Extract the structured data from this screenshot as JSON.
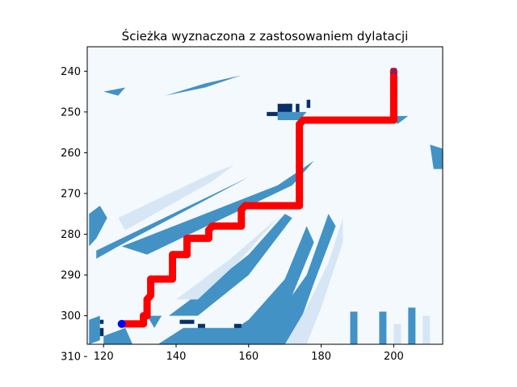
{
  "chart_data": {
    "type": "heatmap",
    "title": "Ścieżka wyznaczona z zastosowaniem dylatacji",
    "xlabel": "",
    "ylabel": "",
    "xlim": [
      115.5,
      213.5
    ],
    "ylim": [
      307,
      234
    ],
    "xticks": [
      120,
      140,
      160,
      180,
      200
    ],
    "yticks": [
      240,
      250,
      260,
      270,
      280,
      290,
      300,
      310
    ],
    "colormap": "Blues",
    "colors": {
      "background": "#f4f9fe",
      "light": "#d6e6f4",
      "mid": "#4292c6",
      "dark": "#08306b",
      "path": "#ff0000",
      "start_marker": "#0000ff",
      "end_marker": "#3a2fa6"
    },
    "regions": [
      {
        "shade": "mid",
        "points": [
          [
            116,
            275
          ],
          [
            119,
            273
          ],
          [
            121,
            276
          ],
          [
            118,
            281
          ],
          [
            116,
            283
          ]
        ]
      },
      {
        "shade": "mid",
        "points": [
          [
            118,
            284
          ],
          [
            160,
            266
          ],
          [
            164,
            264
          ],
          [
            168,
            262
          ],
          [
            160,
            266
          ],
          [
            124,
            283
          ],
          [
            118,
            286
          ]
        ]
      },
      {
        "shade": "light",
        "points": [
          [
            124,
            276
          ],
          [
            150,
            265
          ],
          [
            156,
            263
          ],
          [
            150,
            267
          ],
          [
            126,
            279
          ]
        ]
      },
      {
        "shade": "mid",
        "points": [
          [
            125,
            283
          ],
          [
            168,
            268
          ],
          [
            178,
            262
          ],
          [
            172,
            268
          ],
          [
            132,
            285
          ]
        ]
      },
      {
        "shade": "mid",
        "points": [
          [
            138,
            300
          ],
          [
            150,
            292
          ],
          [
            160,
            285
          ],
          [
            170,
            275
          ],
          [
            172,
            276
          ],
          [
            160,
            290
          ],
          [
            146,
            300
          ]
        ]
      },
      {
        "shade": "light",
        "points": [
          [
            140,
            296
          ],
          [
            155,
            286
          ],
          [
            168,
            276
          ],
          [
            158,
            286
          ],
          [
            146,
            296
          ]
        ]
      },
      {
        "shade": "mid",
        "points": [
          [
            135,
            307
          ],
          [
            142,
            303
          ],
          [
            160,
            303
          ],
          [
            155,
            307
          ]
        ]
      },
      {
        "shade": "mid",
        "points": [
          [
            150,
            307
          ],
          [
            160,
            301
          ],
          [
            170,
            291
          ],
          [
            176,
            278
          ],
          [
            178,
            282
          ],
          [
            172,
            295
          ],
          [
            165,
            307
          ]
        ]
      },
      {
        "shade": "mid",
        "points": [
          [
            160,
            307
          ],
          [
            168,
            300
          ],
          [
            176,
            290
          ],
          [
            182,
            275
          ],
          [
            184,
            278
          ],
          [
            178,
            292
          ],
          [
            172,
            307
          ]
        ]
      },
      {
        "shade": "light",
        "points": [
          [
            170,
            307
          ],
          [
            176,
            298
          ],
          [
            182,
            287
          ],
          [
            186,
            276
          ],
          [
            186,
            282
          ],
          [
            180,
            298
          ],
          [
            176,
            307
          ]
        ]
      },
      {
        "shade": "mid",
        "points": [
          [
            116,
            301
          ],
          [
            119,
            300
          ],
          [
            119,
            306
          ],
          [
            116,
            307
          ]
        ]
      },
      {
        "shade": "mid",
        "points": [
          [
            120,
            305
          ],
          [
            126,
            303
          ],
          [
            128,
            307
          ],
          [
            120,
            307
          ]
        ]
      },
      {
        "shade": "mid",
        "points": [
          [
            132,
            300
          ],
          [
            136,
            300
          ],
          [
            134,
            303
          ]
        ]
      },
      {
        "shade": "mid",
        "points": [
          [
            137,
            246
          ],
          [
            148,
            243
          ],
          [
            158,
            241
          ],
          [
            148,
            244
          ]
        ]
      },
      {
        "shade": "mid",
        "points": [
          [
            120,
            245
          ],
          [
            126,
            244
          ],
          [
            124,
            246
          ]
        ]
      },
      {
        "shade": "mid",
        "points": [
          [
            168,
            250
          ],
          [
            176,
            250
          ],
          [
            174,
            252
          ],
          [
            168,
            252
          ]
        ]
      },
      {
        "shade": "dark",
        "points": [
          [
            168,
            248
          ],
          [
            172,
            248
          ],
          [
            172,
            250
          ],
          [
            168,
            250
          ]
        ]
      },
      {
        "shade": "mid",
        "points": [
          [
            200,
            251
          ],
          [
            204,
            251
          ],
          [
            201,
            253
          ]
        ]
      },
      {
        "shade": "mid",
        "points": [
          [
            210,
            258
          ],
          [
            213.5,
            259
          ],
          [
            213.5,
            264
          ],
          [
            211,
            264
          ]
        ]
      },
      {
        "shade": "mid",
        "points": [
          [
            188,
            299
          ],
          [
            190,
            299
          ],
          [
            190,
            307
          ],
          [
            188,
            307
          ]
        ]
      },
      {
        "shade": "mid",
        "points": [
          [
            196,
            299
          ],
          [
            198,
            299
          ],
          [
            198,
            307
          ],
          [
            196,
            307
          ]
        ]
      },
      {
        "shade": "mid",
        "points": [
          [
            204,
            298
          ],
          [
            206,
            298
          ],
          [
            206,
            307
          ],
          [
            204,
            307
          ]
        ]
      },
      {
        "shade": "light",
        "points": [
          [
            208,
            300
          ],
          [
            210,
            300
          ],
          [
            210,
            307
          ],
          [
            208,
            307
          ]
        ]
      },
      {
        "shade": "light",
        "points": [
          [
            200,
            302
          ],
          [
            202,
            302
          ],
          [
            202,
            307
          ],
          [
            200,
            307
          ]
        ]
      }
    ],
    "dark_blocks": [
      [
        119,
        303,
        1,
        2
      ],
      [
        119,
        301,
        1,
        1
      ],
      [
        141,
        301,
        4,
        1
      ],
      [
        146,
        302,
        2,
        1
      ],
      [
        156,
        302,
        2,
        1
      ],
      [
        165,
        250,
        3,
        1
      ],
      [
        170,
        248,
        2,
        1
      ],
      [
        176,
        247,
        1,
        2
      ],
      [
        173,
        248,
        1,
        2
      ]
    ],
    "path": [
      [
        125,
        302
      ],
      [
        131,
        302
      ],
      [
        131,
        300
      ],
      [
        132,
        300
      ],
      [
        132,
        298
      ],
      [
        132,
        296
      ],
      [
        133,
        295
      ],
      [
        133,
        293
      ],
      [
        133,
        291
      ],
      [
        135,
        291
      ],
      [
        139,
        291
      ],
      [
        139,
        289
      ],
      [
        139,
        287
      ],
      [
        139,
        285
      ],
      [
        143,
        285
      ],
      [
        143,
        283
      ],
      [
        143,
        281
      ],
      [
        149,
        281
      ],
      [
        149,
        279
      ],
      [
        150,
        278
      ],
      [
        158,
        278
      ],
      [
        158,
        276
      ],
      [
        158,
        274
      ],
      [
        159,
        273
      ],
      [
        174,
        273
      ],
      [
        174,
        271
      ],
      [
        174,
        269
      ],
      [
        174,
        267
      ],
      [
        174,
        261
      ],
      [
        174,
        257
      ],
      [
        174,
        255
      ],
      [
        174,
        253
      ],
      [
        175,
        252
      ],
      [
        200,
        252
      ],
      [
        200,
        250
      ],
      [
        200,
        246
      ],
      [
        200,
        242
      ],
      [
        200,
        240
      ]
    ],
    "start": [
      125,
      302
    ],
    "end": [
      200,
      240
    ]
  }
}
